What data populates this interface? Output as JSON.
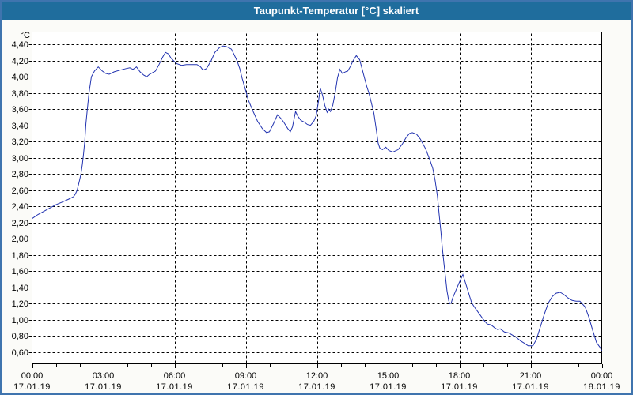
{
  "window": {
    "title": "Taupunkt-Temperatur [°C] skaliert"
  },
  "colors": {
    "titlebar": "#1f6d9d",
    "title_text": "#ffffff",
    "window_border": "#3f74ae",
    "line": "#2233b0",
    "grid": "#000000",
    "axis_text": "#000000",
    "plot_background": "#ffffff"
  },
  "chart_data": {
    "type": "line",
    "title": "Taupunkt-Temperatur [°C] skaliert",
    "y_unit_label": "°C",
    "y_tick_labels": [
      "4,40",
      "4,20",
      "4,00",
      "3,80",
      "3,60",
      "3,40",
      "3,20",
      "3,00",
      "2,80",
      "2,60",
      "2,40",
      "2,20",
      "2,00",
      "1,80",
      "1,60",
      "1,40",
      "1,20",
      "1,00",
      "0,80",
      "0,60"
    ],
    "y_tick_values": [
      4.4,
      4.2,
      4.0,
      3.8,
      3.6,
      3.4,
      3.2,
      3.0,
      2.8,
      2.6,
      2.4,
      2.2,
      2.0,
      1.8,
      1.6,
      1.4,
      1.2,
      1.0,
      0.8,
      0.6
    ],
    "x_tick_labels": [
      {
        "time": "00:00",
        "date": "17.01.19"
      },
      {
        "time": "03:00",
        "date": "17.01.19"
      },
      {
        "time": "06:00",
        "date": "17.01.19"
      },
      {
        "time": "09:00",
        "date": "17.01.19"
      },
      {
        "time": "12:00",
        "date": "17.01.19"
      },
      {
        "time": "15:00",
        "date": "17.01.19"
      },
      {
        "time": "18:00",
        "date": "17.01.19"
      },
      {
        "time": "21:00",
        "date": "17.01.19"
      },
      {
        "time": "00:00",
        "date": "18.01.19"
      }
    ],
    "x_axis": {
      "hours": 24,
      "major_step_hours": 3,
      "minor_step_hours": 1
    },
    "grid": "dashed",
    "legend": "none",
    "series": [
      {
        "name": "Taupunkt-Temperatur",
        "color": "#2233b0",
        "points": [
          [
            0.0,
            2.25
          ],
          [
            0.25,
            2.3
          ],
          [
            0.5,
            2.34
          ],
          [
            0.75,
            2.38
          ],
          [
            1.0,
            2.42
          ],
          [
            1.25,
            2.45
          ],
          [
            1.55,
            2.49
          ],
          [
            1.75,
            2.52
          ],
          [
            1.82,
            2.55
          ],
          [
            1.9,
            2.6
          ],
          [
            2.0,
            2.72
          ],
          [
            2.06,
            2.8
          ],
          [
            2.12,
            2.92
          ],
          [
            2.17,
            3.05
          ],
          [
            2.22,
            3.2
          ],
          [
            2.27,
            3.42
          ],
          [
            2.33,
            3.6
          ],
          [
            2.4,
            3.8
          ],
          [
            2.5,
            4.0
          ],
          [
            2.63,
            4.07
          ],
          [
            2.79,
            4.12
          ],
          [
            2.96,
            4.07
          ],
          [
            3.1,
            4.04
          ],
          [
            3.25,
            4.03
          ],
          [
            3.46,
            4.06
          ],
          [
            3.7,
            4.08
          ],
          [
            3.96,
            4.1
          ],
          [
            4.12,
            4.11
          ],
          [
            4.25,
            4.09
          ],
          [
            4.4,
            4.12
          ],
          [
            4.55,
            4.06
          ],
          [
            4.7,
            4.02
          ],
          [
            4.83,
            4.0
          ],
          [
            4.95,
            4.03
          ],
          [
            5.2,
            4.07
          ],
          [
            5.35,
            4.15
          ],
          [
            5.5,
            4.24
          ],
          [
            5.62,
            4.3
          ],
          [
            5.75,
            4.28
          ],
          [
            5.85,
            4.23
          ],
          [
            5.95,
            4.2
          ],
          [
            6.1,
            4.16
          ],
          [
            6.3,
            4.14
          ],
          [
            6.5,
            4.15
          ],
          [
            6.75,
            4.15
          ],
          [
            6.95,
            4.15
          ],
          [
            7.1,
            4.12
          ],
          [
            7.2,
            4.08
          ],
          [
            7.35,
            4.1
          ],
          [
            7.55,
            4.2
          ],
          [
            7.7,
            4.3
          ],
          [
            7.9,
            4.36
          ],
          [
            8.05,
            4.38
          ],
          [
            8.2,
            4.37
          ],
          [
            8.4,
            4.34
          ],
          [
            8.5,
            4.28
          ],
          [
            8.63,
            4.2
          ],
          [
            8.75,
            4.1
          ],
          [
            8.85,
            3.98
          ],
          [
            9.0,
            3.83
          ],
          [
            9.1,
            3.72
          ],
          [
            9.3,
            3.58
          ],
          [
            9.5,
            3.45
          ],
          [
            9.7,
            3.36
          ],
          [
            9.88,
            3.31
          ],
          [
            10.0,
            3.32
          ],
          [
            10.17,
            3.42
          ],
          [
            10.34,
            3.53
          ],
          [
            10.5,
            3.48
          ],
          [
            10.6,
            3.44
          ],
          [
            10.77,
            3.36
          ],
          [
            10.88,
            3.32
          ],
          [
            10.97,
            3.38
          ],
          [
            11.1,
            3.57
          ],
          [
            11.2,
            3.51
          ],
          [
            11.33,
            3.46
          ],
          [
            11.47,
            3.44
          ],
          [
            11.6,
            3.41
          ],
          [
            11.73,
            3.4
          ],
          [
            11.87,
            3.45
          ],
          [
            11.97,
            3.52
          ],
          [
            12.07,
            3.7
          ],
          [
            12.14,
            3.86
          ],
          [
            12.24,
            3.77
          ],
          [
            12.33,
            3.65
          ],
          [
            12.43,
            3.56
          ],
          [
            12.5,
            3.6
          ],
          [
            12.57,
            3.57
          ],
          [
            12.67,
            3.65
          ],
          [
            12.77,
            3.8
          ],
          [
            12.87,
            3.99
          ],
          [
            12.97,
            4.09
          ],
          [
            13.07,
            4.04
          ],
          [
            13.2,
            4.06
          ],
          [
            13.3,
            4.07
          ],
          [
            13.4,
            4.12
          ],
          [
            13.53,
            4.2
          ],
          [
            13.66,
            4.26
          ],
          [
            13.8,
            4.21
          ],
          [
            13.9,
            4.1
          ],
          [
            14.0,
            3.99
          ],
          [
            14.1,
            3.88
          ],
          [
            14.2,
            3.79
          ],
          [
            14.3,
            3.67
          ],
          [
            14.4,
            3.55
          ],
          [
            14.5,
            3.35
          ],
          [
            14.58,
            3.18
          ],
          [
            14.65,
            3.12
          ],
          [
            14.76,
            3.1
          ],
          [
            14.9,
            3.13
          ],
          [
            15.03,
            3.09
          ],
          [
            15.2,
            3.07
          ],
          [
            15.42,
            3.1
          ],
          [
            15.6,
            3.17
          ],
          [
            15.76,
            3.25
          ],
          [
            15.9,
            3.3
          ],
          [
            16.02,
            3.31
          ],
          [
            16.2,
            3.29
          ],
          [
            16.36,
            3.23
          ],
          [
            16.58,
            3.11
          ],
          [
            16.75,
            2.98
          ],
          [
            16.88,
            2.87
          ],
          [
            16.98,
            2.72
          ],
          [
            17.08,
            2.52
          ],
          [
            17.15,
            2.3
          ],
          [
            17.22,
            2.1
          ],
          [
            17.28,
            1.9
          ],
          [
            17.35,
            1.7
          ],
          [
            17.42,
            1.52
          ],
          [
            17.48,
            1.36
          ],
          [
            17.55,
            1.24
          ],
          [
            17.6,
            1.2
          ],
          [
            17.66,
            1.21
          ],
          [
            17.72,
            1.27
          ],
          [
            17.98,
            1.45
          ],
          [
            18.15,
            1.56
          ],
          [
            18.32,
            1.4
          ],
          [
            18.52,
            1.21
          ],
          [
            18.68,
            1.14
          ],
          [
            18.83,
            1.08
          ],
          [
            19.0,
            1.01
          ],
          [
            19.17,
            0.95
          ],
          [
            19.33,
            0.94
          ],
          [
            19.5,
            0.9
          ],
          [
            19.62,
            0.88
          ],
          [
            19.72,
            0.89
          ],
          [
            19.9,
            0.85
          ],
          [
            20.08,
            0.84
          ],
          [
            20.25,
            0.81
          ],
          [
            20.42,
            0.78
          ],
          [
            20.58,
            0.74
          ],
          [
            20.75,
            0.71
          ],
          [
            20.9,
            0.68
          ],
          [
            21.1,
            0.68
          ],
          [
            21.25,
            0.76
          ],
          [
            21.42,
            0.92
          ],
          [
            21.58,
            1.07
          ],
          [
            21.75,
            1.21
          ],
          [
            21.92,
            1.29
          ],
          [
            22.08,
            1.33
          ],
          [
            22.25,
            1.34
          ],
          [
            22.42,
            1.31
          ],
          [
            22.58,
            1.27
          ],
          [
            22.75,
            1.24
          ],
          [
            22.92,
            1.23
          ],
          [
            23.08,
            1.23
          ],
          [
            23.3,
            1.16
          ],
          [
            23.45,
            1.04
          ],
          [
            23.62,
            0.87
          ],
          [
            23.78,
            0.72
          ],
          [
            23.93,
            0.66
          ],
          [
            24.0,
            0.62
          ]
        ]
      }
    ]
  }
}
